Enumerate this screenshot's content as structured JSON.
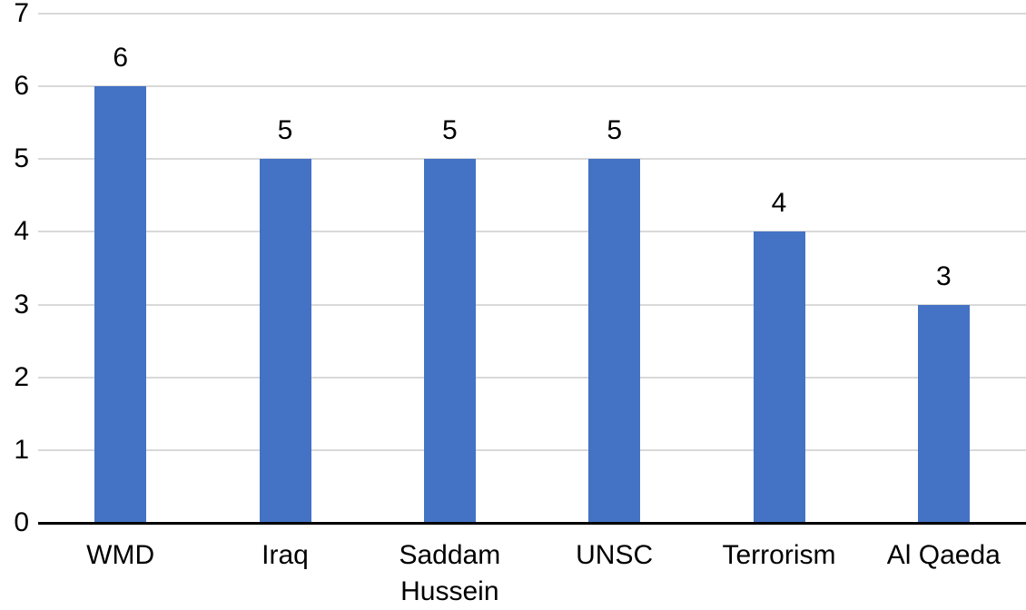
{
  "chart_data": {
    "type": "bar",
    "categories": [
      "WMD",
      "Iraq",
      "Saddam Hussein",
      "UNSC",
      "Terrorism",
      "Al Qaeda"
    ],
    "values": [
      6,
      5,
      5,
      5,
      4,
      3
    ],
    "data_labels": [
      "6",
      "5",
      "5",
      "5",
      "4",
      "3"
    ],
    "title": "",
    "xlabel": "",
    "ylabel": "",
    "ylim": [
      0,
      7
    ],
    "yticks": [
      0,
      1,
      2,
      3,
      4,
      5,
      6,
      7
    ],
    "grid": true,
    "legend": false,
    "colors": {
      "bar": "#4472C4",
      "gridline": "#D9D9D9",
      "axis_line": "#000000",
      "text": "#000000"
    }
  }
}
